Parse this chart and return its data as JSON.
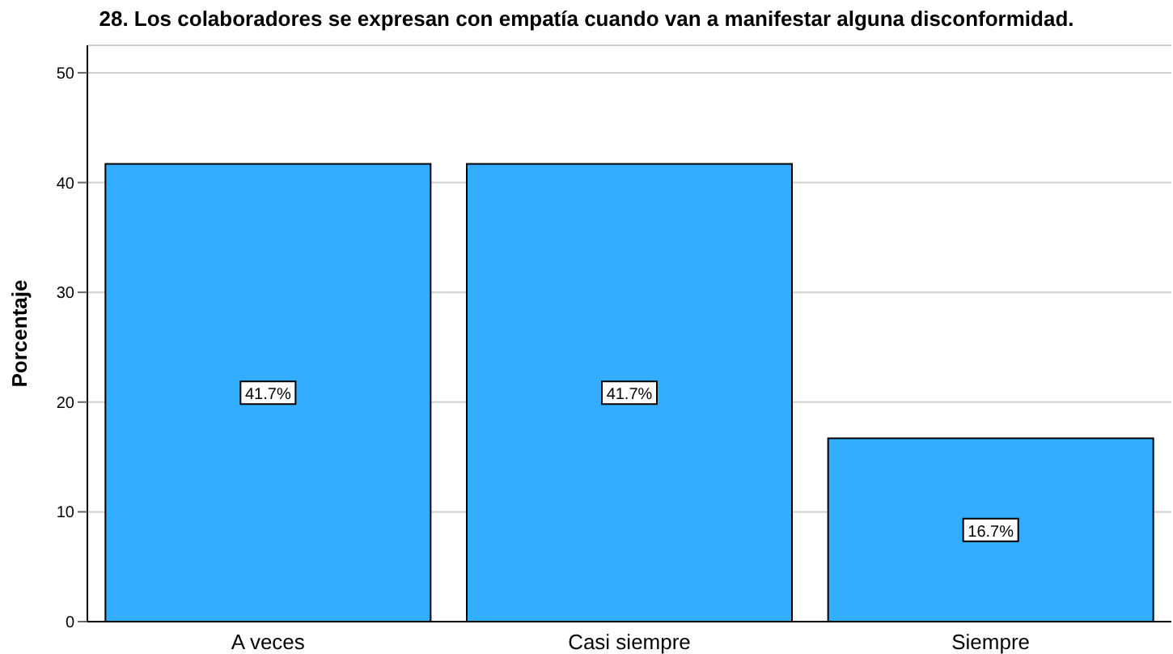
{
  "chart_data": {
    "type": "bar",
    "title": "28. Los colaboradores se expresan con empatía cuando van a manifestar alguna disconformidad.",
    "ylabel": "Porcentaje",
    "categories": [
      "A veces",
      "Casi siempre",
      "Siempre"
    ],
    "values": [
      41.7,
      41.7,
      16.7
    ],
    "color": "#33adff",
    "value_labels": [
      "41.7%",
      "41.7%",
      "16.7%"
    ],
    "ylim": [
      0,
      52.5
    ],
    "yticks": [
      0,
      10,
      20,
      30,
      40,
      50
    ],
    "grid": "y",
    "legend": false
  }
}
